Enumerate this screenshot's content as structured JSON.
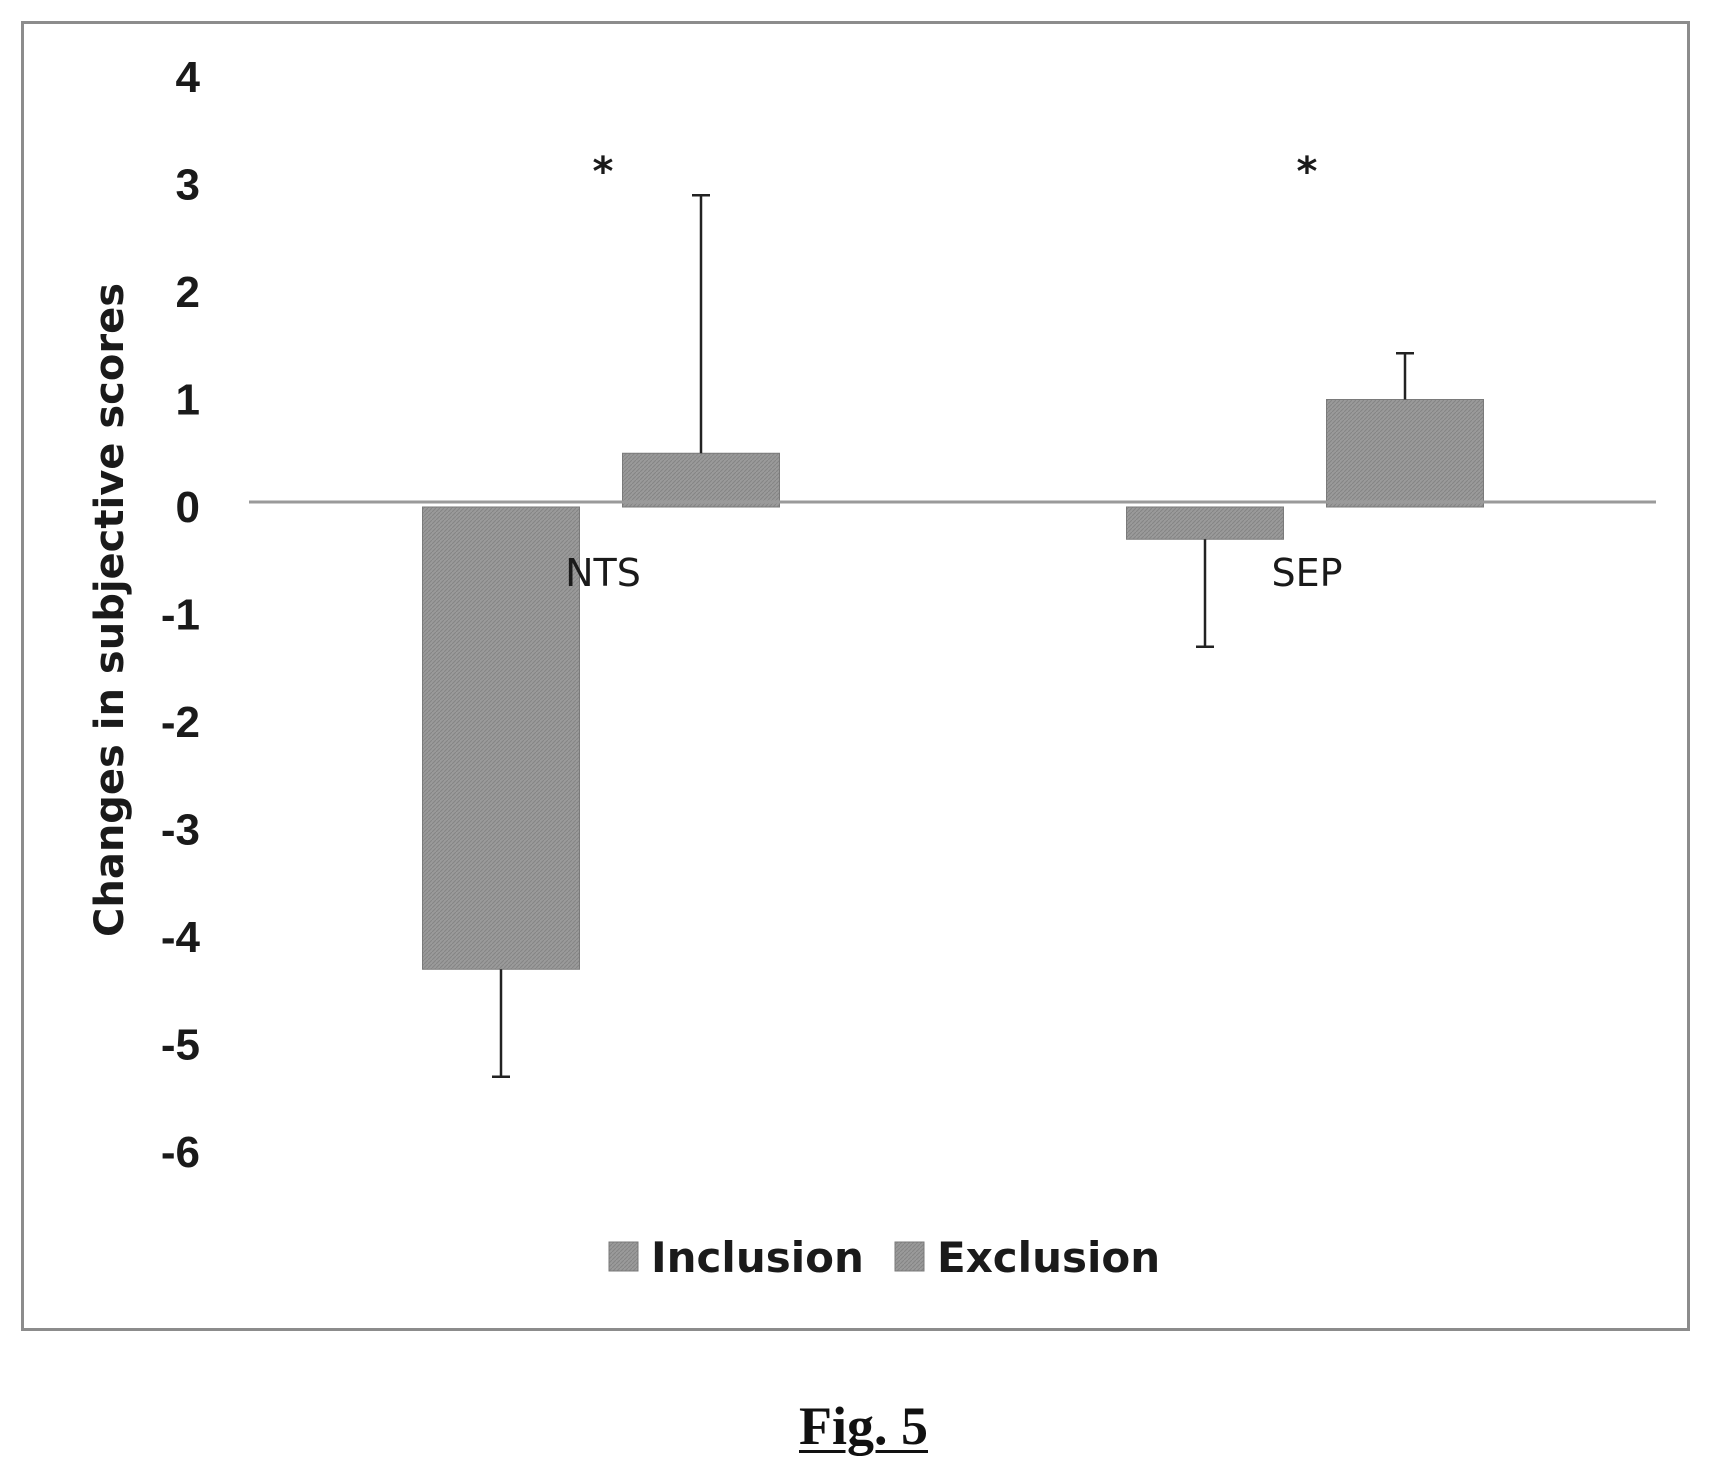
{
  "figure": {
    "caption": "Fig. 5"
  },
  "colors": {
    "bar_fill": "#9a9a9a",
    "bar_hatch": "#7a7a7a",
    "axis_line": "#9a9a9a",
    "frame": "#8c8c8c",
    "text": "#1a1a1a"
  },
  "chart_data": {
    "type": "bar",
    "title": "",
    "xlabel": "",
    "ylabel": "Changes in subjective scores",
    "ylim": [
      -6,
      4
    ],
    "yticks": [
      4,
      3,
      2,
      1,
      0,
      -1,
      -2,
      -3,
      -4,
      -5,
      -6
    ],
    "grid": false,
    "legend_position": "bottom",
    "categories": [
      "NTS",
      "SEP"
    ],
    "series": [
      {
        "name": "Inclusion",
        "values": [
          -4.3,
          -0.3
        ],
        "errors": [
          1.0,
          1.0
        ],
        "error_direction": "down"
      },
      {
        "name": "Exclusion",
        "values": [
          0.5,
          1.0
        ],
        "errors": [
          2.4,
          0.43
        ],
        "error_direction": "up"
      }
    ],
    "annotations": [
      {
        "category": "NTS",
        "text": "*"
      },
      {
        "category": "SEP",
        "text": "*"
      }
    ]
  }
}
